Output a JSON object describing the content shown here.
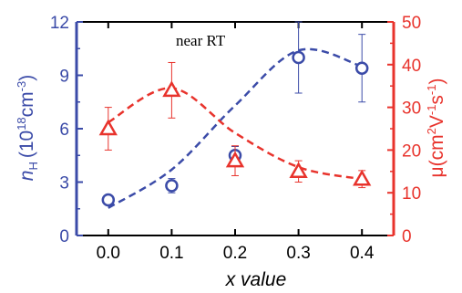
{
  "chart_data": {
    "type": "scatter",
    "annotation": "near RT",
    "xlabel": "x value",
    "x_ticks": [
      "0.0",
      "0.1",
      "0.2",
      "0.3",
      "0.4"
    ],
    "xlim": [
      -0.05,
      0.45
    ],
    "y_left": {
      "label_main": "n",
      "label_sub": "H",
      "label_unit": "(10",
      "label_exp": "18",
      "label_unit2": "cm",
      "label_exp2": "-3",
      "label_close": ")",
      "ylim": [
        0,
        12
      ],
      "ticks": [
        "0",
        "3",
        "6",
        "9",
        "12"
      ],
      "color": "#3b4ba8"
    },
    "y_right": {
      "label_main": "μ(cm",
      "label_exp": "2",
      "label_mid": "V",
      "label_exp2": "-1",
      "label_mid2": "s",
      "label_exp3": "-1",
      "label_close": ")",
      "ylim": [
        0,
        50
      ],
      "ticks": [
        "0",
        "10",
        "20",
        "30",
        "40",
        "50"
      ],
      "color": "#e8332c"
    },
    "series": [
      {
        "axis": "left",
        "marker": "circle",
        "color": "#3b4ba8",
        "x": [
          0.0,
          0.1,
          0.2,
          0.3,
          0.4
        ],
        "y": [
          2.0,
          2.8,
          4.5,
          10.0,
          9.4
        ],
        "err": [
          0.0,
          0.4,
          0.5,
          2.0,
          1.9
        ],
        "trend_y": [
          1.55,
          3.7,
          7.3,
          10.4,
          9.5
        ]
      },
      {
        "axis": "right",
        "marker": "triangle",
        "color": "#e8332c",
        "x": [
          0.0,
          0.1,
          0.2,
          0.3,
          0.4
        ],
        "y": [
          25.0,
          34.0,
          17.5,
          15.0,
          13.2
        ],
        "err": [
          5.0,
          6.5,
          3.5,
          2.5,
          2.0
        ],
        "trend_y": [
          26.5,
          34.5,
          24.0,
          16.0,
          13.2
        ]
      }
    ]
  }
}
